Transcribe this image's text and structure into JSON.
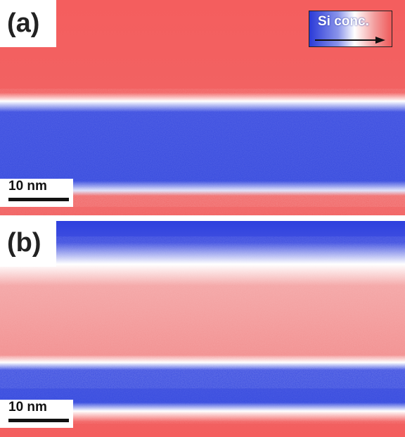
{
  "panel_a": {
    "label": "(a)",
    "scale_bar": "10 nm"
  },
  "panel_b": {
    "label": "(b)",
    "scale_bar": "10 nm"
  },
  "legend": {
    "title": "Si conc."
  },
  "colors": {
    "high_si": "#2e40de",
    "low_si": "#f26060",
    "interface": "#ffffff"
  }
}
